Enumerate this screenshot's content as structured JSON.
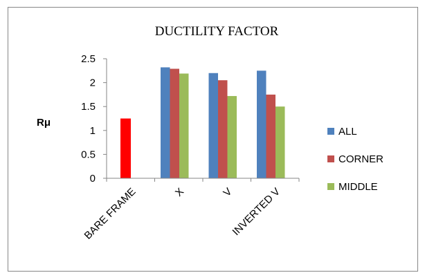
{
  "chart_data": {
    "type": "bar",
    "title": "DUCTILITY FACTOR",
    "ylabel": "Rμ",
    "xlabel": "",
    "ylim": [
      0,
      2.5
    ],
    "yticks": [
      "0",
      "0.5",
      "1",
      "1.5",
      "2",
      "2.5"
    ],
    "ytick_values": [
      0,
      0.5,
      1,
      1.5,
      2,
      2.5
    ],
    "grid": false,
    "legend_position": "right",
    "categories": [
      "BARE FRAME",
      "X",
      "V",
      "INVERTED V"
    ],
    "series": [
      {
        "name": "ALL",
        "color": "#4F81BD",
        "values": [
          null,
          2.32,
          2.2,
          2.25
        ]
      },
      {
        "name": "CORNER",
        "color": "#C0504D",
        "values": [
          null,
          2.29,
          2.05,
          1.75
        ]
      },
      {
        "name": "MIDDLE",
        "color": "#9BBB59",
        "values": [
          null,
          2.19,
          1.72,
          1.5
        ]
      }
    ],
    "extra_bars": [
      {
        "category": "BARE FRAME",
        "value": 1.25,
        "color": "#FF0000"
      }
    ]
  }
}
